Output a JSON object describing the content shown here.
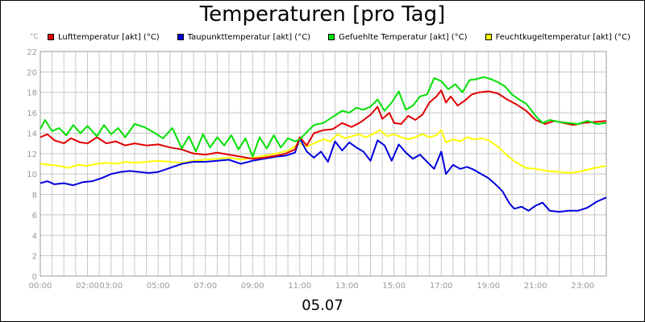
{
  "chart_data": {
    "type": "line",
    "title": "Temperaturen [pro Tag]",
    "xlabel": "05.07",
    "ylabel_unit": "°C",
    "ylim": [
      0,
      22
    ],
    "xlim_hours": [
      0,
      24
    ],
    "y_ticks": [
      "0",
      "2",
      "4",
      "6",
      "8",
      "10",
      "12",
      "14",
      "16",
      "18",
      "20",
      "22"
    ],
    "x_ticks": [
      {
        "h": 0,
        "label": "00:00"
      },
      {
        "h": 2,
        "label": "02:00"
      },
      {
        "h": 3,
        "label": "03:00"
      },
      {
        "h": 5,
        "label": "05:00"
      },
      {
        "h": 7,
        "label": "07:00"
      },
      {
        "h": 9,
        "label": "09:00"
      },
      {
        "h": 11,
        "label": "11:00"
      },
      {
        "h": 13,
        "label": "13:00"
      },
      {
        "h": 15,
        "label": "15:00"
      },
      {
        "h": 17,
        "label": "17:00"
      },
      {
        "h": 19,
        "label": "19:00"
      },
      {
        "h": 21,
        "label": "21:00"
      },
      {
        "h": 23,
        "label": "23:00"
      }
    ],
    "grid": true,
    "legend_position": "top",
    "series": [
      {
        "name": "Lufttemperatur [akt] (°C)",
        "color": "#e00000",
        "points": [
          [
            0,
            13.6
          ],
          [
            0.3,
            13.9
          ],
          [
            0.6,
            13.3
          ],
          [
            1.0,
            13.0
          ],
          [
            1.3,
            13.5
          ],
          [
            1.7,
            13.1
          ],
          [
            2.0,
            13.0
          ],
          [
            2.4,
            13.6
          ],
          [
            2.8,
            13.0
          ],
          [
            3.2,
            13.2
          ],
          [
            3.6,
            12.8
          ],
          [
            4.0,
            13.0
          ],
          [
            4.5,
            12.8
          ],
          [
            5.0,
            12.9
          ],
          [
            5.5,
            12.6
          ],
          [
            6.0,
            12.4
          ],
          [
            6.5,
            12.0
          ],
          [
            7.0,
            11.9
          ],
          [
            7.5,
            12.1
          ],
          [
            8.0,
            11.9
          ],
          [
            8.5,
            11.7
          ],
          [
            9.0,
            11.5
          ],
          [
            9.5,
            11.6
          ],
          [
            10.0,
            11.8
          ],
          [
            10.4,
            12.0
          ],
          [
            10.8,
            12.4
          ],
          [
            11.0,
            13.6
          ],
          [
            11.3,
            12.8
          ],
          [
            11.6,
            14.0
          ],
          [
            12.0,
            14.3
          ],
          [
            12.4,
            14.4
          ],
          [
            12.8,
            15.0
          ],
          [
            13.2,
            14.6
          ],
          [
            13.6,
            15.1
          ],
          [
            14.0,
            15.8
          ],
          [
            14.3,
            16.6
          ],
          [
            14.5,
            15.4
          ],
          [
            14.8,
            16.0
          ],
          [
            15.0,
            15.0
          ],
          [
            15.3,
            14.9
          ],
          [
            15.6,
            15.7
          ],
          [
            15.9,
            15.3
          ],
          [
            16.2,
            15.8
          ],
          [
            16.5,
            17.0
          ],
          [
            16.8,
            17.6
          ],
          [
            17.0,
            18.2
          ],
          [
            17.2,
            17.0
          ],
          [
            17.4,
            17.6
          ],
          [
            17.7,
            16.7
          ],
          [
            18.0,
            17.2
          ],
          [
            18.3,
            17.8
          ],
          [
            18.6,
            18.0
          ],
          [
            19.0,
            18.1
          ],
          [
            19.4,
            17.9
          ],
          [
            19.8,
            17.3
          ],
          [
            20.2,
            16.8
          ],
          [
            20.6,
            16.2
          ],
          [
            21.0,
            15.3
          ],
          [
            21.4,
            14.9
          ],
          [
            21.8,
            15.2
          ],
          [
            22.2,
            15.0
          ],
          [
            22.6,
            14.8
          ],
          [
            23.0,
            15.0
          ],
          [
            23.5,
            15.1
          ],
          [
            24.0,
            15.2
          ]
        ]
      },
      {
        "name": "Taupunkttemperatur [akt] (°C)",
        "color": "#0000dd",
        "points": [
          [
            0,
            9.1
          ],
          [
            0.3,
            9.3
          ],
          [
            0.6,
            9.0
          ],
          [
            1.0,
            9.1
          ],
          [
            1.4,
            8.9
          ],
          [
            1.8,
            9.2
          ],
          [
            2.2,
            9.3
          ],
          [
            2.6,
            9.6
          ],
          [
            3.0,
            10.0
          ],
          [
            3.4,
            10.2
          ],
          [
            3.8,
            10.3
          ],
          [
            4.2,
            10.2
          ],
          [
            4.6,
            10.1
          ],
          [
            5.0,
            10.2
          ],
          [
            5.5,
            10.6
          ],
          [
            6.0,
            11.0
          ],
          [
            6.5,
            11.2
          ],
          [
            7.0,
            11.2
          ],
          [
            7.5,
            11.3
          ],
          [
            8.0,
            11.4
          ],
          [
            8.5,
            11.0
          ],
          [
            9.0,
            11.3
          ],
          [
            9.5,
            11.5
          ],
          [
            10.0,
            11.7
          ],
          [
            10.4,
            11.8
          ],
          [
            10.8,
            12.1
          ],
          [
            11.0,
            13.5
          ],
          [
            11.3,
            12.2
          ],
          [
            11.6,
            11.6
          ],
          [
            11.9,
            12.2
          ],
          [
            12.2,
            11.2
          ],
          [
            12.5,
            13.2
          ],
          [
            12.8,
            12.3
          ],
          [
            13.1,
            13.1
          ],
          [
            13.4,
            12.6
          ],
          [
            13.7,
            12.2
          ],
          [
            14.0,
            11.3
          ],
          [
            14.3,
            13.3
          ],
          [
            14.6,
            12.8
          ],
          [
            14.9,
            11.3
          ],
          [
            15.2,
            12.9
          ],
          [
            15.5,
            12.1
          ],
          [
            15.8,
            11.5
          ],
          [
            16.1,
            11.9
          ],
          [
            16.4,
            11.2
          ],
          [
            16.7,
            10.5
          ],
          [
            17.0,
            12.2
          ],
          [
            17.2,
            10.0
          ],
          [
            17.5,
            10.9
          ],
          [
            17.8,
            10.5
          ],
          [
            18.1,
            10.7
          ],
          [
            18.4,
            10.4
          ],
          [
            18.7,
            10.0
          ],
          [
            19.0,
            9.6
          ],
          [
            19.3,
            9.0
          ],
          [
            19.6,
            8.3
          ],
          [
            19.9,
            7.1
          ],
          [
            20.1,
            6.6
          ],
          [
            20.4,
            6.8
          ],
          [
            20.7,
            6.4
          ],
          [
            21.0,
            6.9
          ],
          [
            21.3,
            7.2
          ],
          [
            21.6,
            6.4
          ],
          [
            22.0,
            6.3
          ],
          [
            22.4,
            6.4
          ],
          [
            22.8,
            6.4
          ],
          [
            23.2,
            6.7
          ],
          [
            23.6,
            7.3
          ],
          [
            24.0,
            7.7
          ]
        ]
      },
      {
        "name": "Gefuehlte Temperatur [akt] (°C)",
        "color": "#00e000",
        "points": [
          [
            0,
            14.4
          ],
          [
            0.2,
            15.3
          ],
          [
            0.5,
            14.2
          ],
          [
            0.8,
            14.5
          ],
          [
            1.1,
            13.8
          ],
          [
            1.4,
            14.8
          ],
          [
            1.7,
            14.0
          ],
          [
            2.0,
            14.7
          ],
          [
            2.4,
            13.7
          ],
          [
            2.7,
            14.8
          ],
          [
            3.0,
            13.9
          ],
          [
            3.3,
            14.5
          ],
          [
            3.6,
            13.6
          ],
          [
            4.0,
            14.9
          ],
          [
            4.4,
            14.6
          ],
          [
            4.8,
            14.1
          ],
          [
            5.2,
            13.5
          ],
          [
            5.6,
            14.5
          ],
          [
            6.0,
            12.5
          ],
          [
            6.3,
            13.7
          ],
          [
            6.6,
            12.2
          ],
          [
            6.9,
            13.9
          ],
          [
            7.2,
            12.6
          ],
          [
            7.5,
            13.6
          ],
          [
            7.8,
            12.8
          ],
          [
            8.1,
            13.8
          ],
          [
            8.4,
            12.4
          ],
          [
            8.7,
            13.5
          ],
          [
            9.0,
            11.7
          ],
          [
            9.3,
            13.6
          ],
          [
            9.6,
            12.5
          ],
          [
            9.9,
            13.8
          ],
          [
            10.2,
            12.6
          ],
          [
            10.5,
            13.5
          ],
          [
            10.8,
            13.2
          ],
          [
            11.0,
            13.4
          ],
          [
            11.3,
            14.1
          ],
          [
            11.6,
            14.8
          ],
          [
            12.0,
            15.0
          ],
          [
            12.4,
            15.6
          ],
          [
            12.8,
            16.2
          ],
          [
            13.1,
            16.0
          ],
          [
            13.4,
            16.5
          ],
          [
            13.7,
            16.3
          ],
          [
            14.0,
            16.6
          ],
          [
            14.3,
            17.3
          ],
          [
            14.6,
            16.2
          ],
          [
            14.9,
            17.0
          ],
          [
            15.2,
            18.1
          ],
          [
            15.5,
            16.3
          ],
          [
            15.8,
            16.7
          ],
          [
            16.1,
            17.6
          ],
          [
            16.4,
            17.8
          ],
          [
            16.7,
            19.4
          ],
          [
            17.0,
            19.1
          ],
          [
            17.3,
            18.3
          ],
          [
            17.6,
            18.8
          ],
          [
            17.9,
            18.0
          ],
          [
            18.2,
            19.2
          ],
          [
            18.5,
            19.3
          ],
          [
            18.8,
            19.5
          ],
          [
            19.1,
            19.3
          ],
          [
            19.4,
            19.0
          ],
          [
            19.7,
            18.6
          ],
          [
            20.0,
            17.8
          ],
          [
            20.3,
            17.3
          ],
          [
            20.6,
            16.9
          ],
          [
            21.0,
            15.7
          ],
          [
            21.3,
            15.0
          ],
          [
            21.6,
            15.3
          ],
          [
            22.0,
            15.1
          ],
          [
            22.4,
            15.0
          ],
          [
            22.8,
            14.9
          ],
          [
            23.2,
            15.2
          ],
          [
            23.6,
            14.9
          ],
          [
            24.0,
            15.0
          ]
        ]
      },
      {
        "name": "Feuchtkugeltemperatur [akt] (°C)",
        "color": "#ffff00",
        "points": [
          [
            0,
            11.0
          ],
          [
            0.4,
            10.9
          ],
          [
            0.8,
            10.8
          ],
          [
            1.2,
            10.6
          ],
          [
            1.6,
            10.9
          ],
          [
            2.0,
            10.8
          ],
          [
            2.4,
            11.0
          ],
          [
            2.8,
            11.1
          ],
          [
            3.2,
            11.0
          ],
          [
            3.6,
            11.2
          ],
          [
            4.0,
            11.1
          ],
          [
            4.5,
            11.2
          ],
          [
            5.0,
            11.3
          ],
          [
            5.5,
            11.2
          ],
          [
            6.0,
            11.1
          ],
          [
            6.5,
            11.3
          ],
          [
            7.0,
            11.4
          ],
          [
            7.5,
            11.5
          ],
          [
            8.0,
            11.6
          ],
          [
            8.5,
            11.4
          ],
          [
            9.0,
            11.6
          ],
          [
            9.5,
            11.8
          ],
          [
            10.0,
            12.0
          ],
          [
            10.5,
            12.3
          ],
          [
            11.0,
            13.0
          ],
          [
            11.3,
            12.7
          ],
          [
            11.6,
            13.0
          ],
          [
            12.0,
            13.4
          ],
          [
            12.3,
            13.2
          ],
          [
            12.6,
            13.9
          ],
          [
            12.9,
            13.5
          ],
          [
            13.2,
            13.7
          ],
          [
            13.5,
            13.9
          ],
          [
            13.8,
            13.6
          ],
          [
            14.1,
            13.9
          ],
          [
            14.4,
            14.3
          ],
          [
            14.7,
            13.7
          ],
          [
            15.0,
            13.9
          ],
          [
            15.3,
            13.6
          ],
          [
            15.6,
            13.4
          ],
          [
            15.9,
            13.6
          ],
          [
            16.2,
            13.9
          ],
          [
            16.5,
            13.6
          ],
          [
            16.8,
            13.8
          ],
          [
            17.0,
            14.3
          ],
          [
            17.2,
            13.1
          ],
          [
            17.5,
            13.4
          ],
          [
            17.8,
            13.2
          ],
          [
            18.1,
            13.6
          ],
          [
            18.4,
            13.4
          ],
          [
            18.7,
            13.5
          ],
          [
            19.0,
            13.3
          ],
          [
            19.4,
            12.7
          ],
          [
            19.8,
            11.8
          ],
          [
            20.2,
            11.1
          ],
          [
            20.6,
            10.6
          ],
          [
            21.0,
            10.5
          ],
          [
            21.5,
            10.3
          ],
          [
            22.0,
            10.2
          ],
          [
            22.5,
            10.1
          ],
          [
            23.0,
            10.3
          ],
          [
            23.5,
            10.6
          ],
          [
            24.0,
            10.8
          ]
        ]
      }
    ]
  }
}
